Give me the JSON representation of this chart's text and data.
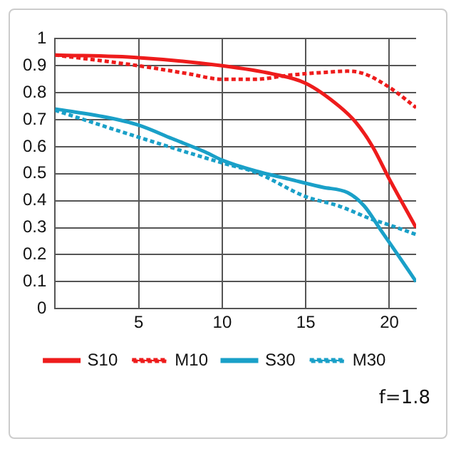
{
  "chart_data": {
    "type": "line",
    "xlim": [
      0,
      21.6
    ],
    "xticks": [
      5,
      10,
      15,
      20
    ],
    "ylim": [
      0,
      1
    ],
    "yticks": [
      0,
      0.1,
      0.2,
      0.3,
      0.4,
      0.5,
      0.6,
      0.7,
      0.8,
      0.9,
      1
    ],
    "grid": true,
    "legend": "bottom",
    "marker": "none",
    "annotations": [
      "f=1.8"
    ],
    "series": [
      {
        "name": "S10",
        "color": "#ee1c1c",
        "line_style": "solid",
        "x": [
          0,
          5,
          10,
          13,
          15,
          17,
          18,
          19,
          20,
          21.6
        ],
        "values": [
          0.94,
          0.93,
          0.9,
          0.87,
          0.835,
          0.75,
          0.69,
          0.6,
          0.48,
          0.3
        ]
      },
      {
        "name": "M10",
        "color": "#ee1c1c",
        "line_style": "dotted",
        "x": [
          0,
          5,
          8,
          10,
          12,
          14,
          16,
          17.5,
          18.5,
          20,
          21.6
        ],
        "values": [
          0.94,
          0.9,
          0.87,
          0.85,
          0.85,
          0.865,
          0.875,
          0.88,
          0.87,
          0.82,
          0.745
        ]
      },
      {
        "name": "S30",
        "color": "#1aa0c8",
        "line_style": "solid",
        "x": [
          0,
          3,
          5,
          7,
          9,
          10,
          12,
          14,
          16,
          17.5,
          18.5,
          19.5,
          20.5,
          21.6
        ],
        "values": [
          0.74,
          0.71,
          0.68,
          0.63,
          0.58,
          0.55,
          0.51,
          0.48,
          0.45,
          0.43,
          0.38,
          0.29,
          0.2,
          0.1
        ]
      },
      {
        "name": "M30",
        "color": "#1aa0c8",
        "line_style": "dotted",
        "x": [
          0,
          5,
          10,
          12,
          15,
          17,
          19,
          20,
          21.6
        ],
        "values": [
          0.735,
          0.635,
          0.54,
          0.505,
          0.415,
          0.38,
          0.33,
          0.31,
          0.275
        ]
      }
    ]
  }
}
